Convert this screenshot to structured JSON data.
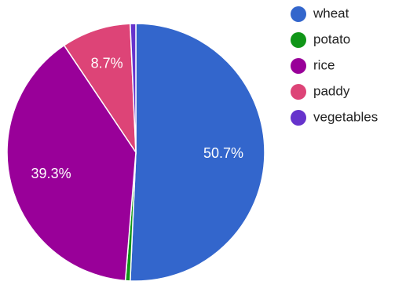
{
  "chart_data": {
    "type": "pie",
    "categories": [
      "wheat",
      "potato",
      "rice",
      "paddy",
      "vegetables"
    ],
    "values": [
      50.7,
      0.6,
      39.3,
      8.7,
      0.7
    ],
    "colors": [
      "#3366cc",
      "#109618",
      "#990099",
      "#dd4477",
      "#6633cc"
    ],
    "labels": [
      "50.7%",
      "",
      "39.3%",
      "8.7%",
      ""
    ],
    "legend_position": "right",
    "start_angle": "top",
    "direction": "clockwise"
  }
}
